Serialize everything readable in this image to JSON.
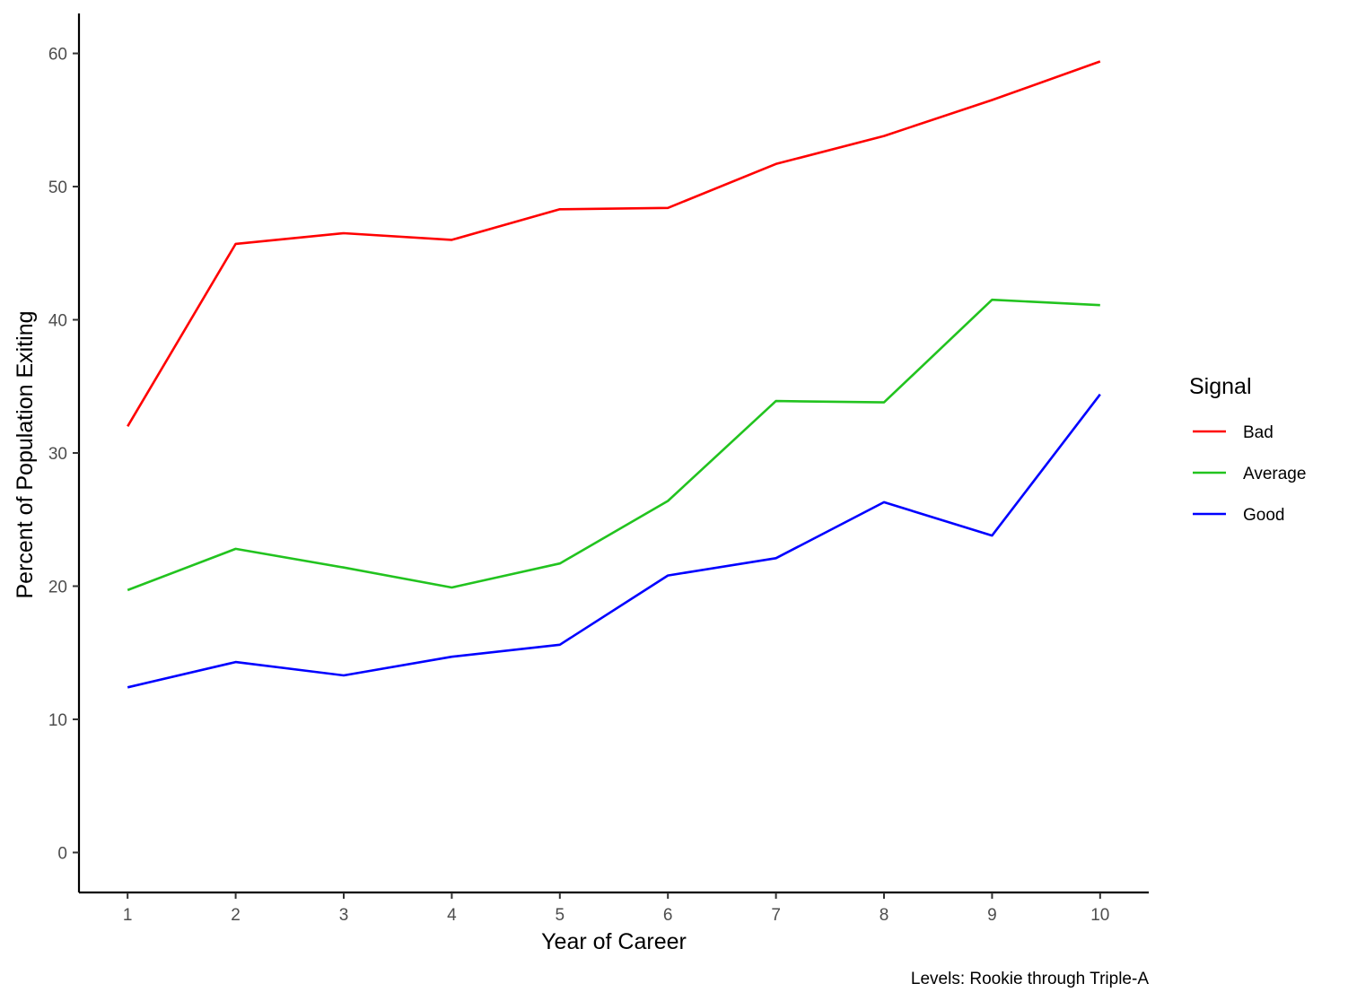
{
  "chart_data": {
    "type": "line",
    "title": "",
    "xlabel": "Year of Career",
    "ylabel": "Percent of Population Exiting",
    "caption": "Levels: Rookie through Triple-A",
    "x": [
      1,
      2,
      3,
      4,
      5,
      6,
      7,
      8,
      9,
      10
    ],
    "xticks": [
      "1",
      "2",
      "3",
      "4",
      "5",
      "6",
      "7",
      "8",
      "9",
      "10"
    ],
    "yticks": [
      "0",
      "10",
      "20",
      "30",
      "40",
      "50",
      "60"
    ],
    "ytick_values": [
      0,
      10,
      20,
      30,
      40,
      50,
      60
    ],
    "xlim": [
      0.55,
      10.45
    ],
    "ylim": [
      -3,
      63
    ],
    "grid": false,
    "legend": {
      "title": "Signal",
      "position": "right"
    },
    "series": [
      {
        "name": "Bad",
        "color": "#ff0000",
        "values": [
          32.0,
          45.7,
          46.5,
          46.0,
          48.3,
          48.4,
          51.7,
          53.8,
          56.5,
          59.4
        ]
      },
      {
        "name": "Average",
        "color": "#22c31f",
        "values": [
          19.7,
          22.8,
          21.4,
          19.9,
          21.7,
          26.4,
          33.9,
          33.8,
          41.5,
          41.1
        ]
      },
      {
        "name": "Good",
        "color": "#0000ff",
        "values": [
          12.4,
          14.3,
          13.3,
          14.7,
          15.6,
          20.8,
          22.1,
          26.3,
          23.8,
          34.4
        ]
      }
    ]
  }
}
